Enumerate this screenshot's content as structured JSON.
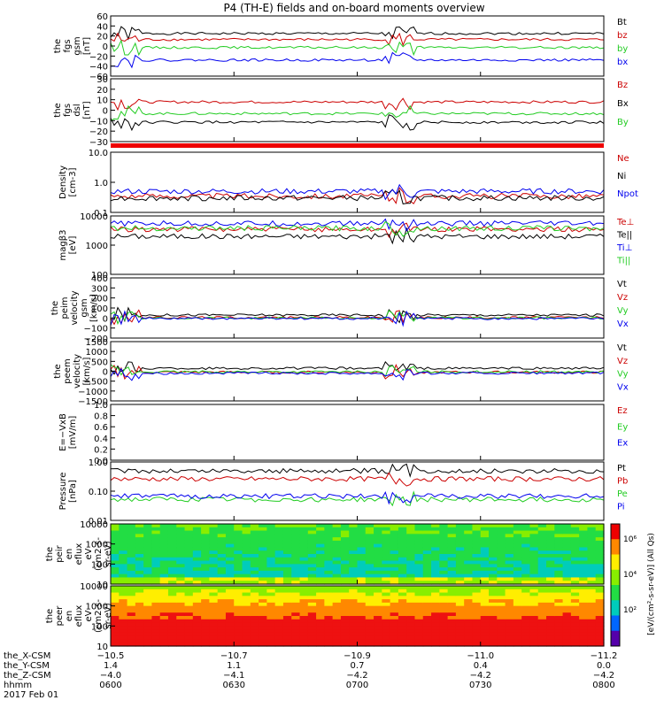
{
  "title": "P4 (TH-E) fields and on-board moments overview",
  "colors": {
    "black": "#000000",
    "red": "#cc0000",
    "green": "#22cc22",
    "blue": "#0000ee"
  },
  "chart_data": [
    {
      "type": "line",
      "id": "fgs-gsm",
      "ylabel": [
        "the",
        "fgs",
        "gsm",
        "[nT]"
      ],
      "ylim": [
        -60,
        60
      ],
      "yticks": [
        "60",
        "40",
        "20",
        "0",
        "−20",
        "−40",
        "−60"
      ],
      "series": [
        {
          "name": "Bt",
          "color": "black",
          "level": 25
        },
        {
          "name": "bz",
          "color": "red",
          "level": 13
        },
        {
          "name": "by",
          "color": "green",
          "level": -3
        },
        {
          "name": "bx",
          "color": "blue",
          "level": -28
        }
      ]
    },
    {
      "type": "line",
      "id": "fgs-dsl",
      "ylabel": [
        "the",
        "fgs",
        "dsl",
        "[nT]"
      ],
      "ylim": [
        -35,
        30
      ],
      "yticks": [
        "30",
        "20",
        "10",
        "0",
        "−10",
        "−20",
        "−30"
      ],
      "series": [
        {
          "name": "Bz",
          "color": "red",
          "level": 6
        },
        {
          "name": "Bx",
          "color": "black",
          "level": -15
        },
        {
          "name": "By",
          "color": "green",
          "level": -6
        }
      ]
    },
    {
      "type": "line",
      "id": "density",
      "ylabel": [
        "Density",
        "[cm-3]"
      ],
      "log": true,
      "ylim": [
        0.1,
        10
      ],
      "yticks": [
        "10.0",
        "1.0",
        "0.1"
      ],
      "series": [
        {
          "name": "Ne",
          "color": "red",
          "level": 0.35
        },
        {
          "name": "Ni",
          "color": "black",
          "level": 0.3
        },
        {
          "name": "Npot",
          "color": "blue",
          "level": 0.5
        }
      ]
    },
    {
      "type": "line",
      "id": "temperature",
      "ylabel": [
        "magβ3",
        "[eV]"
      ],
      "log": true,
      "ylim": [
        100,
        10000
      ],
      "yticks": [
        "10000",
        "1000",
        "100"
      ],
      "series": [
        {
          "name": "Te⊥",
          "color": "red",
          "level": 3500
        },
        {
          "name": "Te||",
          "color": "black",
          "level": 2000
        },
        {
          "name": "Ti⊥",
          "color": "blue",
          "level": 5500
        },
        {
          "name": "Ti||",
          "color": "green",
          "level": 3800
        }
      ]
    },
    {
      "type": "line",
      "id": "peim-velocity",
      "ylabel": [
        "the",
        "peim",
        "velocity",
        "gsm",
        "[km/s]"
      ],
      "ylim": [
        -200,
        400
      ],
      "yticks": [
        "400",
        "300",
        "200",
        "100",
        "0",
        "−100",
        "−200"
      ],
      "series": [
        {
          "name": "Vt",
          "color": "black",
          "level": 30
        },
        {
          "name": "Vz",
          "color": "red",
          "level": 5
        },
        {
          "name": "Vy",
          "color": "green",
          "level": 0
        },
        {
          "name": "Vx",
          "color": "blue",
          "level": -5
        }
      ]
    },
    {
      "type": "line",
      "id": "peem-velocity",
      "ylabel": [
        "the",
        "peem",
        "velocity",
        "[km/s]"
      ],
      "ylim": [
        -1500,
        1500
      ],
      "yticks": [
        "1500",
        "1000",
        "500",
        "0",
        "−500",
        "−1000",
        "−1500"
      ],
      "series": [
        {
          "name": "Vt",
          "color": "black",
          "level": 150
        },
        {
          "name": "Vz",
          "color": "red",
          "level": -50
        },
        {
          "name": "Vy",
          "color": "green",
          "level": -30
        },
        {
          "name": "Vx",
          "color": "blue",
          "level": -100
        }
      ]
    },
    {
      "type": "line",
      "id": "e-field",
      "ylabel": [
        "E=−VxB",
        "[mV/m]"
      ],
      "ylim": [
        0,
        1
      ],
      "yticks": [
        "1.0",
        "0.8",
        "0.6",
        "0.4",
        "0.2",
        "0.0"
      ],
      "series": [
        {
          "name": "Ez",
          "color": "red"
        },
        {
          "name": "Ey",
          "color": "green"
        },
        {
          "name": "Ex",
          "color": "blue"
        }
      ]
    },
    {
      "type": "line",
      "id": "pressure",
      "ylabel": [
        "Pressure",
        "[nPa]"
      ],
      "log": true,
      "ylim": [
        0.01,
        1.5
      ],
      "yticks": [
        "1.00",
        "0.10",
        "0.01"
      ],
      "series": [
        {
          "name": "Pt",
          "color": "black",
          "level": 0.7
        },
        {
          "name": "Pb",
          "color": "red",
          "level": 0.35
        },
        {
          "name": "Pe",
          "color": "green",
          "level": 0.06
        },
        {
          "name": "Pi",
          "color": "blue",
          "level": 0.08
        }
      ]
    },
    {
      "type": "heatmap",
      "id": "peir-flux",
      "ylabel": [
        "the",
        "peir",
        "en",
        "eflux",
        "eV",
        "(cm2-s-",
        "sr-eV)"
      ],
      "yticks": [
        "10000",
        "1000",
        "100",
        "10"
      ]
    },
    {
      "type": "heatmap",
      "id": "peer-flux",
      "ylabel": [
        "the",
        "peer",
        "en",
        "eflux",
        "eV",
        "(cm2-s-",
        "sr-eV)"
      ],
      "yticks": [
        "10000",
        "1000",
        "100",
        "10"
      ]
    }
  ],
  "colorbar": {
    "label": "[eV/(cm²-s-sr-eV)] (All Qs)",
    "ticks": [
      "10⁶",
      "10⁴",
      "10²"
    ]
  },
  "xaxis": {
    "ticks": [
      "0600",
      "0630",
      "0700",
      "0730",
      "0800"
    ],
    "rows": [
      {
        "label": "the_X-CSM",
        "values": [
          "−10.5",
          "−10.7",
          "−10.9",
          "−11.0",
          "−11.2"
        ]
      },
      {
        "label": "the_Y-CSM",
        "values": [
          "1.4",
          "1.1",
          "0.7",
          "0.4",
          "0.0"
        ]
      },
      {
        "label": "the_Z-CSM",
        "values": [
          "−4.0",
          "−4.1",
          "−4.2",
          "−4.2",
          "−4.2"
        ]
      },
      {
        "label": "hhmm",
        "values": [
          "0600",
          "0630",
          "0700",
          "0730",
          "0800"
        ]
      }
    ],
    "date": "2017 Feb 01"
  }
}
